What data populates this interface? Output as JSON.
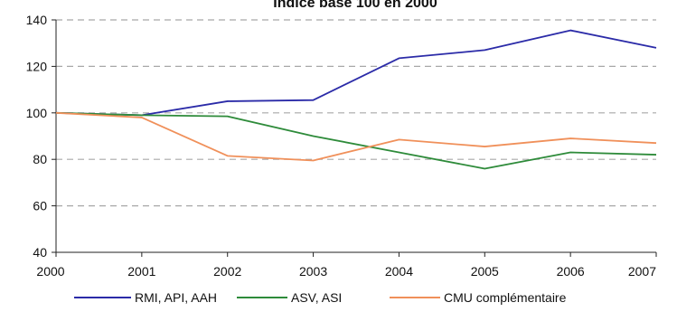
{
  "chart_data": {
    "type": "line",
    "title": "Indice base 100 en 2000",
    "xlabel": "",
    "ylabel": "",
    "x": [
      "2000",
      "2001",
      "2002",
      "2003",
      "2004",
      "2005",
      "2006",
      "2007"
    ],
    "ylim": [
      40,
      140
    ],
    "yticks": [
      40,
      60,
      80,
      100,
      120,
      140
    ],
    "grid": "horizontal dashed",
    "legend_position": "bottom",
    "series": [
      {
        "name": "RMI, API, AAH",
        "color": "#2b2ba8",
        "values": [
          100,
          99,
          105,
          105.5,
          123.5,
          127,
          135.5,
          128
        ]
      },
      {
        "name": "ASV, ASI",
        "color": "#2e8b3a",
        "values": [
          100,
          99,
          98.5,
          90,
          83,
          76,
          83,
          82
        ]
      },
      {
        "name": "CMU complémentaire",
        "color": "#f0905a",
        "values": [
          100,
          98,
          81.5,
          79.5,
          88.5,
          85.5,
          89,
          87
        ]
      }
    ]
  }
}
